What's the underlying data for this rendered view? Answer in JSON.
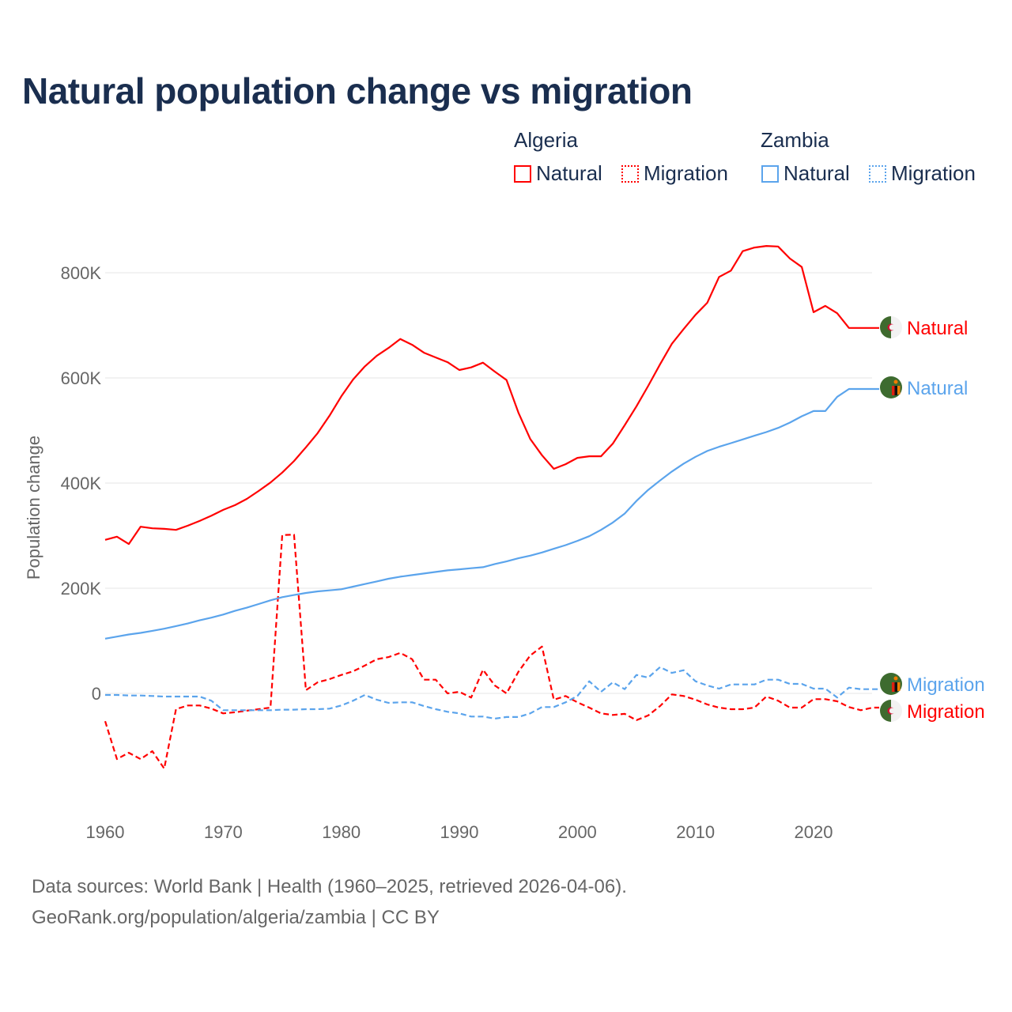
{
  "chart_data": {
    "type": "line",
    "title": "Natural population change vs migration",
    "xlabel": "",
    "ylabel": "Population change",
    "xlim": [
      1960,
      2025
    ],
    "ylim": [
      -200000,
      900000
    ],
    "x_ticks": [
      "1960",
      "1970",
      "1980",
      "1990",
      "2000",
      "2010",
      "2020"
    ],
    "y_ticks": [
      {
        "v": 0,
        "label": "0"
      },
      {
        "v": 200000,
        "label": "200K"
      },
      {
        "v": 400000,
        "label": "400K"
      },
      {
        "v": 600000,
        "label": "600K"
      },
      {
        "v": 800000,
        "label": "800K"
      }
    ],
    "grid": true,
    "legend_placement": "top-right",
    "legend_groups": [
      {
        "country": "Algeria",
        "items": [
          "Natural",
          "Migration"
        ]
      },
      {
        "country": "Zambia",
        "items": [
          "Natural",
          "Migration"
        ]
      }
    ],
    "x_start": 1960,
    "units": "thousands",
    "series": [
      {
        "name": "Algeria Natural",
        "country": "Algeria",
        "kind": "Natural",
        "color": "#ff0000",
        "dash": false,
        "end_label": "Natural",
        "values": [
          292,
          298,
          284,
          317,
          314,
          313,
          311,
          319,
          328,
          338,
          349,
          358,
          370,
          385,
          401,
          420,
          442,
          468,
          495,
          528,
          565,
          597,
          622,
          642,
          657,
          674,
          663,
          648,
          639,
          630,
          615,
          620,
          629,
          612,
          596,
          534,
          484,
          453,
          427,
          436,
          448,
          451,
          451,
          475,
          510,
          546,
          585,
          626,
          665,
          693,
          720,
          743,
          792,
          804,
          841,
          848,
          851,
          850,
          827,
          811,
          725,
          737,
          723,
          695,
          695,
          695
        ]
      },
      {
        "name": "Algeria Migration",
        "country": "Algeria",
        "kind": "Migration",
        "color": "#ff0000",
        "dash": true,
        "end_label": "Migration",
        "values": [
          -53,
          -125,
          -113,
          -125,
          -110,
          -143,
          -30,
          -23,
          -23,
          -29,
          -38,
          -36,
          -33,
          -30,
          -27,
          301,
          302,
          6,
          21,
          27,
          35,
          42,
          53,
          65,
          69,
          77,
          65,
          26,
          26,
          0,
          3,
          -8,
          45,
          15,
          0,
          41,
          72,
          89,
          -12,
          -5,
          -17,
          -27,
          -38,
          -41,
          -39,
          -51,
          -42,
          -24,
          -2,
          -5,
          -12,
          -21,
          -27,
          -30,
          -30,
          -27,
          -6,
          -14,
          -27,
          -27,
          -11,
          -11,
          -15,
          -26,
          -32,
          -27
        ]
      },
      {
        "name": "Zambia Natural",
        "country": "Zambia",
        "kind": "Natural",
        "color": "#5ba4ec",
        "dash": false,
        "end_label": "Natural",
        "values": [
          104,
          108,
          112,
          115,
          119,
          123,
          128,
          133,
          139,
          144,
          150,
          157,
          163,
          170,
          177,
          183,
          187,
          191,
          194,
          196,
          198,
          203,
          208,
          213,
          218,
          222,
          225,
          228,
          231,
          234,
          236,
          238,
          240,
          246,
          251,
          257,
          262,
          268,
          275,
          282,
          290,
          299,
          311,
          325,
          342,
          366,
          387,
          405,
          422,
          437,
          450,
          461,
          469,
          476,
          483,
          490,
          497,
          505,
          515,
          527,
          537,
          537,
          564,
          579,
          579,
          579
        ]
      },
      {
        "name": "Zambia Migration",
        "country": "Zambia",
        "kind": "Migration",
        "color": "#5ba4ec",
        "dash": true,
        "end_label": "Migration",
        "values": [
          -3,
          -3,
          -4,
          -4,
          -5,
          -6,
          -6,
          -6,
          -6,
          -14,
          -32,
          -32,
          -32,
          -32,
          -32,
          -31,
          -31,
          -30,
          -30,
          -29,
          -23,
          -14,
          -3,
          -12,
          -18,
          -17,
          -17,
          -24,
          -30,
          -35,
          -38,
          -44,
          -44,
          -48,
          -45,
          -45,
          -38,
          -26,
          -26,
          -17,
          -5,
          23,
          3,
          21,
          8,
          35,
          30,
          50,
          39,
          44,
          23,
          15,
          9,
          17,
          17,
          17,
          26,
          26,
          18,
          18,
          9,
          9,
          -8,
          11,
          8,
          8
        ]
      }
    ]
  },
  "footer": {
    "line1": "Data sources: World Bank | Health (1960–2025, retrieved 2026-04-06).",
    "line2": "GeoRank.org/population/algeria/zambia | CC BY"
  }
}
